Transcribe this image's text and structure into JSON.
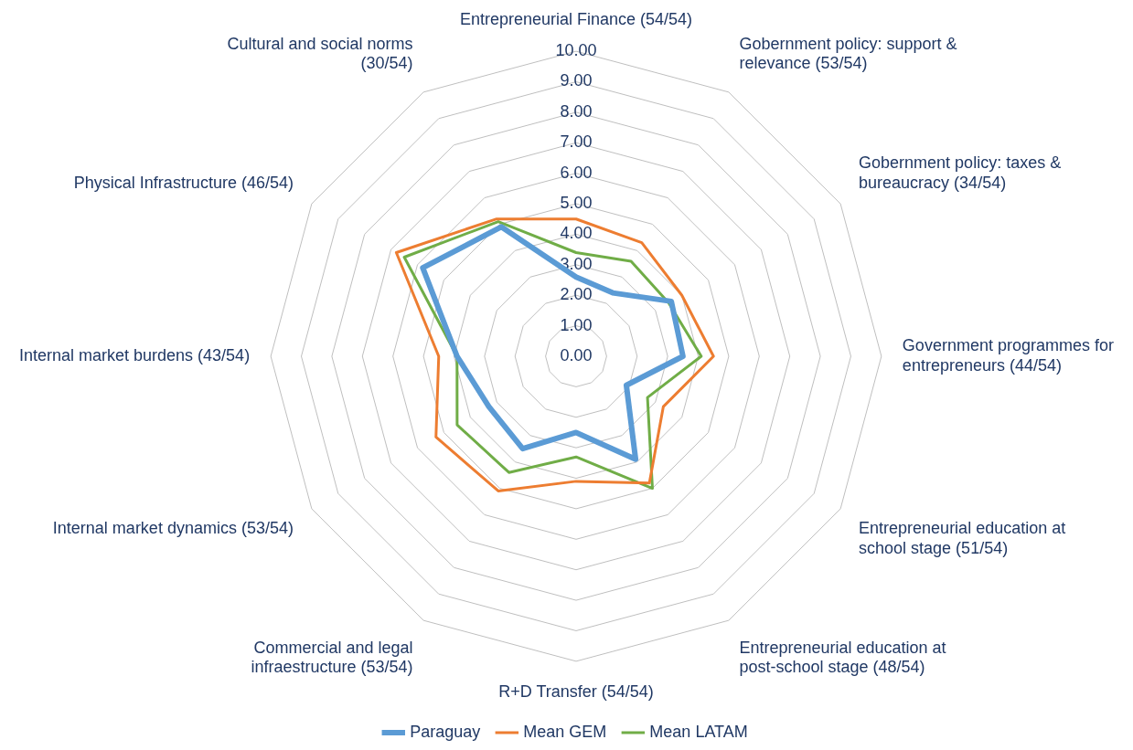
{
  "chart_data": {
    "type": "radar",
    "categories": [
      "Entrepreneurial Finance (54/54)",
      "Gobernment policy: support &\nrelevance (53/54)",
      "Gobernment policy: taxes &\nbureaucracy (34/54)",
      "Government programmes for\nentrepreneurs (44/54)",
      "Entrepreneurial education at\nschool stage (51/54)",
      "Entrepreneurial education at\npost-school stage (48/54)",
      "R+D Transfer (54/54)",
      "Commercial and legal\ninfraestructure (53/54)",
      "Internal market dynamics (53/54)",
      "Internal market burdens (43/54)",
      "Physical Infrastructure (46/54)",
      "Cultural and social norms\n(30/54)"
    ],
    "series": [
      {
        "name": "Paraguay",
        "color": "#5b9bd5",
        "values": [
          2.6,
          2.4,
          3.6,
          3.5,
          1.9,
          3.9,
          2.5,
          3.5,
          3.3,
          3.9,
          5.8,
          4.9
        ]
      },
      {
        "name": "Mean GEM",
        "color": "#ed7d31",
        "values": [
          4.5,
          4.3,
          4.0,
          4.5,
          3.3,
          4.8,
          4.1,
          5.1,
          5.3,
          4.5,
          6.8,
          5.2
        ]
      },
      {
        "name": "Mean LATAM",
        "color": "#70ad47",
        "values": [
          3.4,
          3.6,
          3.5,
          4.1,
          2.7,
          5.0,
          3.3,
          4.4,
          4.5,
          3.9,
          6.5,
          5.1
        ]
      }
    ],
    "ylim": [
      0,
      10
    ],
    "yticks": [
      {
        "value": 0,
        "label": "0.00"
      },
      {
        "value": 1,
        "label": "1.00"
      },
      {
        "value": 2,
        "label": "2.00"
      },
      {
        "value": 3,
        "label": "3.00"
      },
      {
        "value": 4,
        "label": "4.00"
      },
      {
        "value": 5,
        "label": "5.00"
      },
      {
        "value": 6,
        "label": "6.00"
      },
      {
        "value": 7,
        "label": "7.00"
      },
      {
        "value": 8,
        "label": "8.00"
      },
      {
        "value": 9,
        "label": "9.00"
      },
      {
        "value": 10,
        "label": "10.00"
      }
    ],
    "grid": true,
    "legend": "bottom",
    "marker": "none",
    "line_style": "solid"
  }
}
